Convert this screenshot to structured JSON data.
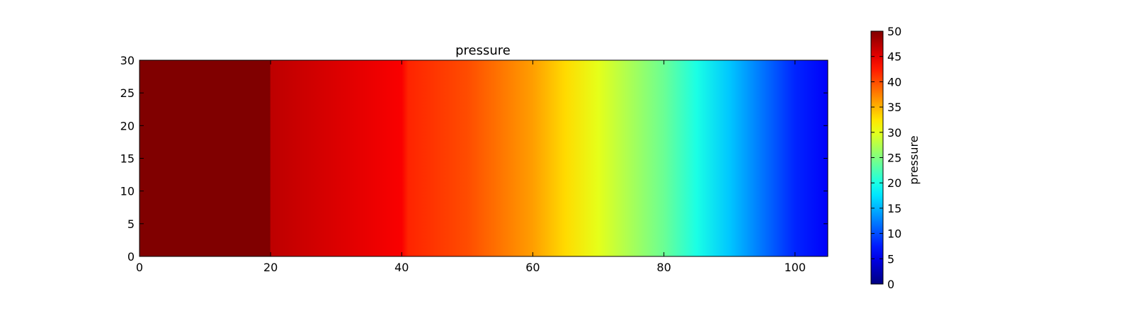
{
  "chart_data": {
    "type": "heatmap",
    "title": "pressure",
    "xlim": [
      0,
      105
    ],
    "ylim": [
      0,
      30
    ],
    "xticks": [
      0,
      20,
      40,
      60,
      80,
      100
    ],
    "yticks": [
      0,
      5,
      10,
      15,
      20,
      25,
      30
    ],
    "field_profile": {
      "description_of_axis": "pressure value along x (approximately uniform in y)",
      "x": [
        0,
        10,
        19.9,
        20,
        30,
        40,
        41,
        50,
        55,
        60,
        65,
        70,
        75,
        80,
        85,
        90,
        95,
        100,
        105
      ],
      "pressure": [
        50,
        50,
        50,
        47,
        45.5,
        44,
        42,
        40,
        38,
        36,
        33,
        30,
        27,
        24,
        20,
        16,
        12,
        8,
        6
      ]
    },
    "colorbar": {
      "label": "pressure",
      "range": [
        0,
        50
      ],
      "ticks": [
        0,
        5,
        10,
        15,
        20,
        25,
        30,
        35,
        40,
        45,
        50
      ],
      "colormap": "jet"
    }
  }
}
